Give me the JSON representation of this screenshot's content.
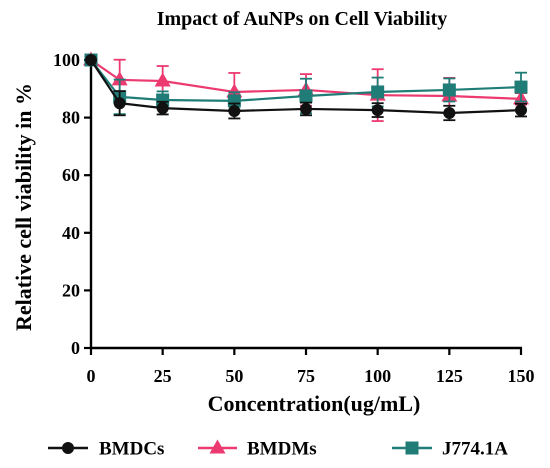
{
  "chart_data": {
    "type": "line",
    "title": "Impact of AuNPs on Cell Viability",
    "xlabel": "Concentration(ug/mL)",
    "ylabel": "Relative cell viability in %",
    "x": [
      0,
      10,
      25,
      50,
      75,
      100,
      125,
      150
    ],
    "xlim": [
      0,
      150
    ],
    "ylim": [
      0,
      100
    ],
    "xticks": [
      0,
      25,
      50,
      75,
      100,
      125,
      150
    ],
    "yticks": [
      0,
      20,
      40,
      60,
      80,
      100
    ],
    "grid": false,
    "legend_position": "bottom",
    "error_bars": true,
    "series": [
      {
        "name": "BMDCs",
        "color": "#111111",
        "marker": "circle",
        "values": [
          100,
          85.0,
          83.3,
          82.3,
          83.0,
          82.6,
          81.6,
          82.6
        ],
        "errors": [
          0.5,
          4.2,
          2.2,
          2.6,
          2.2,
          2.4,
          2.5,
          2.2
        ]
      },
      {
        "name": "BMDMs",
        "color": "#ec3a70",
        "marker": "triangle",
        "values": [
          100,
          93.1,
          92.7,
          88.9,
          89.6,
          87.8,
          87.5,
          86.5
        ],
        "errors": [
          0.5,
          7.0,
          5.2,
          6.6,
          5.5,
          9.0,
          6.3,
          2.0
        ]
      },
      {
        "name": "J774.1A",
        "color": "#1f7c77",
        "marker": "square",
        "values": [
          100,
          87.2,
          86.1,
          85.8,
          87.5,
          88.9,
          89.6,
          90.6
        ],
        "errors": [
          0.5,
          6.0,
          3.0,
          3.0,
          6.0,
          5.0,
          4.0,
          5.0
        ]
      }
    ]
  }
}
